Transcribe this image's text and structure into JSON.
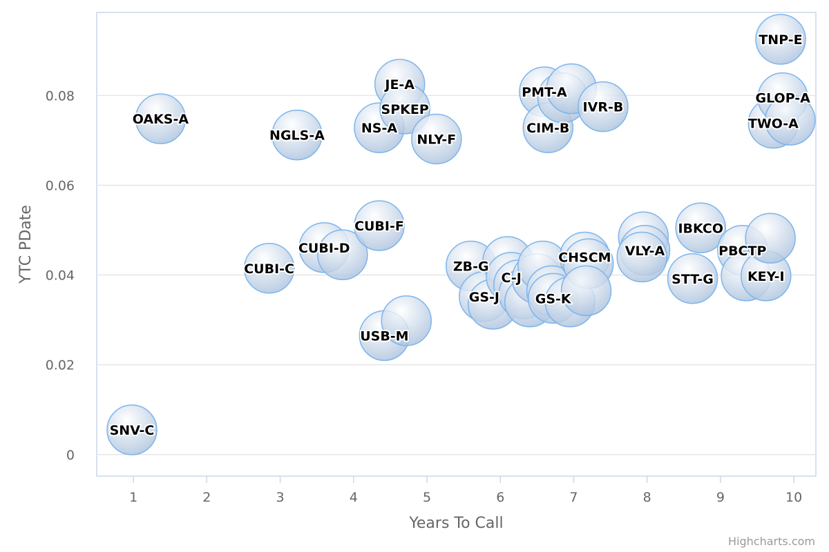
{
  "chart_data": {
    "type": "scatter",
    "title": "",
    "xlabel": "Years To Call",
    "ylabel": "YTC PDate",
    "xlim": [
      0.5,
      10.3
    ],
    "ylim": [
      -0.0048,
      0.0985
    ],
    "x_ticks": [
      "1",
      "2",
      "3",
      "4",
      "5",
      "6",
      "7",
      "8",
      "9",
      "10"
    ],
    "y_ticks": [
      "0",
      "0.02",
      "0.04",
      "0.06",
      "0.08"
    ],
    "grid": "horizontal",
    "legend": "none",
    "credits": "Highcharts.com",
    "colors": {
      "bubble_fill_center": "#ffffff",
      "bubble_fill_edge": "#a9c0dc",
      "bubble_stroke": "#7cb5ec",
      "grid": "#e6e6e6",
      "axis_line": "#ccd6eb"
    },
    "series": [
      {
        "points": [
          {
            "x": 0.98,
            "y": 0.0055,
            "label": "SNV-C"
          },
          {
            "x": 1.37,
            "y": 0.0748,
            "label": "OAKS-A"
          },
          {
            "x": 2.85,
            "y": 0.0415,
            "label": "CUBI-C"
          },
          {
            "x": 3.23,
            "y": 0.0712,
            "label": "NGLS-A"
          },
          {
            "x": 3.6,
            "y": 0.0461,
            "label": "CUBI-D"
          },
          {
            "x": 3.85,
            "y": 0.0445,
            "label": ""
          },
          {
            "x": 4.35,
            "y": 0.0728,
            "label": "NS-A"
          },
          {
            "x": 4.35,
            "y": 0.051,
            "label": "CUBI-F"
          },
          {
            "x": 4.42,
            "y": 0.0265,
            "label": "USB-M"
          },
          {
            "x": 4.72,
            "y": 0.0298,
            "label": ""
          },
          {
            "x": 4.63,
            "y": 0.0825,
            "label": "JE-A"
          },
          {
            "x": 4.7,
            "y": 0.077,
            "label": "SPKEP"
          },
          {
            "x": 5.13,
            "y": 0.0703,
            "label": "NLY-F"
          },
          {
            "x": 5.6,
            "y": 0.042,
            "label": "ZB-G"
          },
          {
            "x": 5.78,
            "y": 0.0352,
            "label": "GS-J"
          },
          {
            "x": 5.9,
            "y": 0.0335,
            "label": ""
          },
          {
            "x": 6.1,
            "y": 0.043,
            "label": ""
          },
          {
            "x": 6.15,
            "y": 0.0395,
            "label": "C-J"
          },
          {
            "x": 6.25,
            "y": 0.0378,
            "label": ""
          },
          {
            "x": 6.32,
            "y": 0.0358,
            "label": ""
          },
          {
            "x": 6.4,
            "y": 0.034,
            "label": ""
          },
          {
            "x": 6.5,
            "y": 0.0392,
            "label": ""
          },
          {
            "x": 6.58,
            "y": 0.042,
            "label": ""
          },
          {
            "x": 6.6,
            "y": 0.0808,
            "label": "PMT-A"
          },
          {
            "x": 6.65,
            "y": 0.0728,
            "label": "CIM-B"
          },
          {
            "x": 6.7,
            "y": 0.0365,
            "label": ""
          },
          {
            "x": 6.72,
            "y": 0.0348,
            "label": "GS-K"
          },
          {
            "x": 6.85,
            "y": 0.0795,
            "label": ""
          },
          {
            "x": 6.97,
            "y": 0.0815,
            "label": ""
          },
          {
            "x": 6.95,
            "y": 0.034,
            "label": ""
          },
          {
            "x": 7.15,
            "y": 0.044,
            "label": "CHSCM"
          },
          {
            "x": 7.2,
            "y": 0.0425,
            "label": ""
          },
          {
            "x": 7.17,
            "y": 0.0365,
            "label": ""
          },
          {
            "x": 7.4,
            "y": 0.0775,
            "label": "IVR-B"
          },
          {
            "x": 7.95,
            "y": 0.0485,
            "label": ""
          },
          {
            "x": 7.97,
            "y": 0.0455,
            "label": "VLY-A"
          },
          {
            "x": 7.93,
            "y": 0.044,
            "label": ""
          },
          {
            "x": 8.62,
            "y": 0.0392,
            "label": "STT-G"
          },
          {
            "x": 8.73,
            "y": 0.0505,
            "label": "IBKCO"
          },
          {
            "x": 9.3,
            "y": 0.0455,
            "label": "PBCTP"
          },
          {
            "x": 9.35,
            "y": 0.0398,
            "label": ""
          },
          {
            "x": 9.62,
            "y": 0.0398,
            "label": "KEY-I"
          },
          {
            "x": 9.68,
            "y": 0.0482,
            "label": ""
          },
          {
            "x": 9.72,
            "y": 0.0738,
            "label": "TWO-A"
          },
          {
            "x": 9.85,
            "y": 0.0795,
            "label": "GLOP-A"
          },
          {
            "x": 9.95,
            "y": 0.0745,
            "label": ""
          },
          {
            "x": 9.82,
            "y": 0.0925,
            "label": "TNP-E"
          }
        ]
      }
    ]
  }
}
